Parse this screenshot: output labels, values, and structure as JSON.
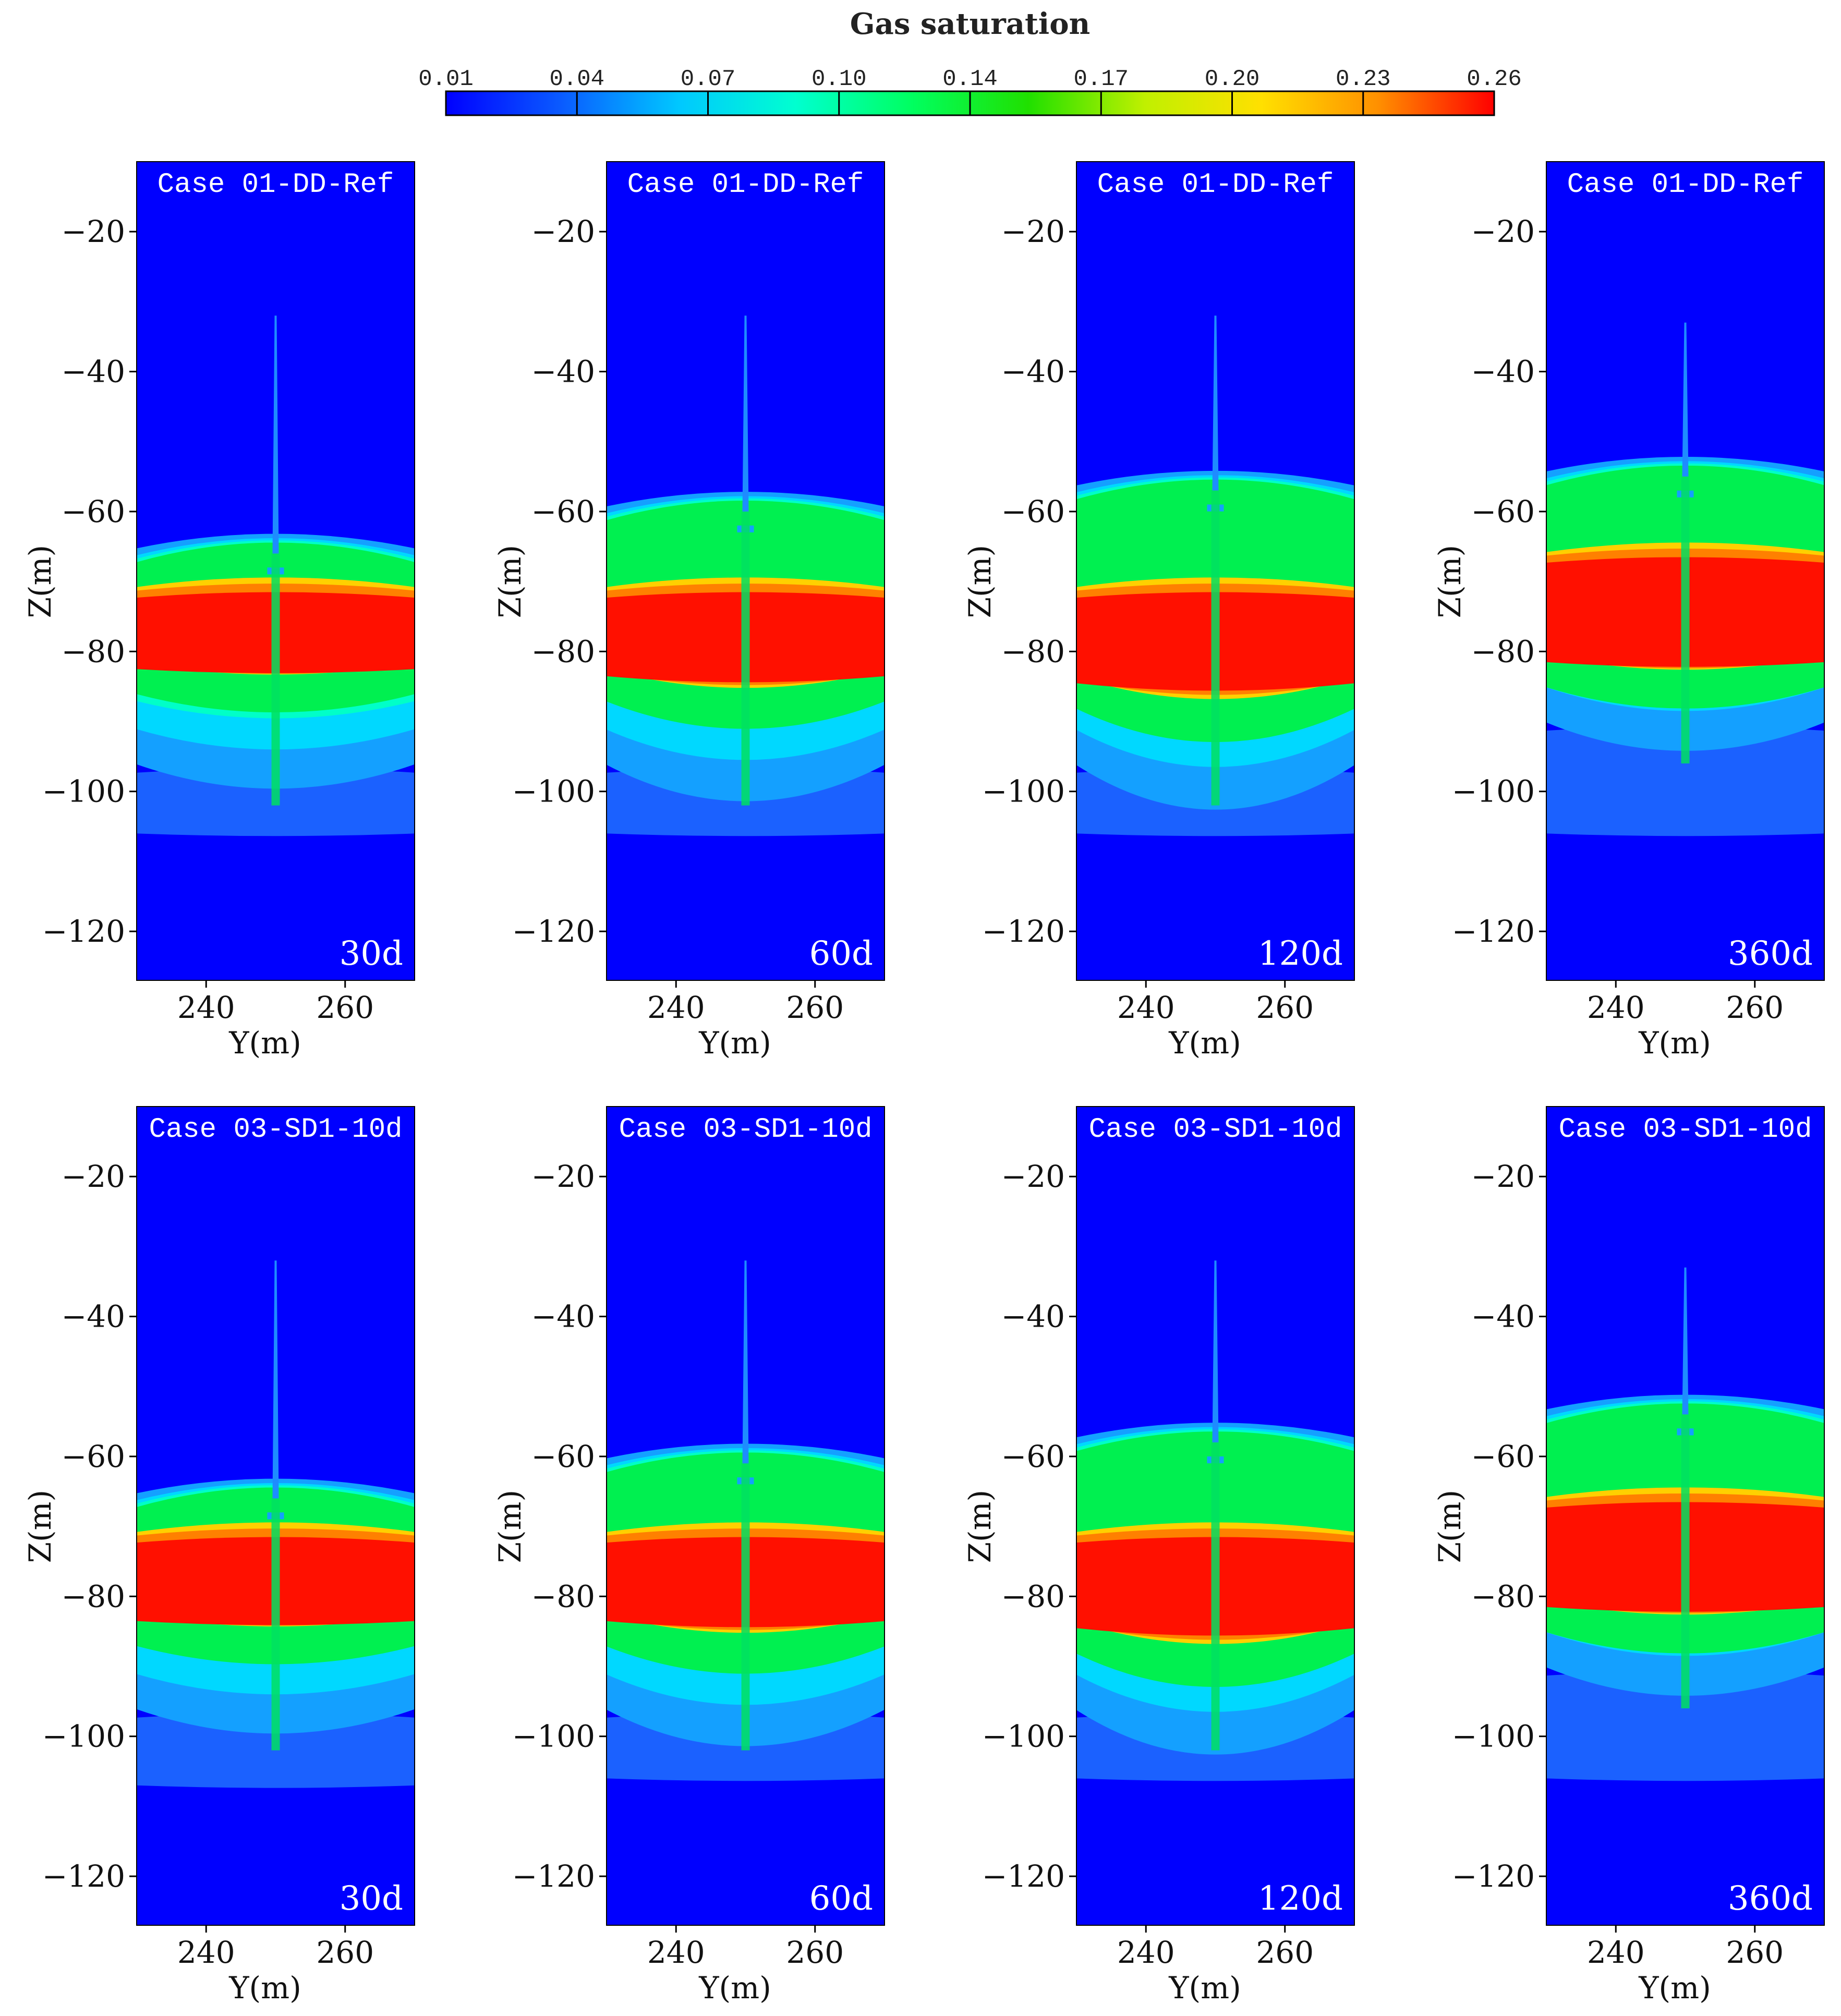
{
  "chart_data": {
    "type": "heatmap",
    "quantity": "Gas saturation",
    "colorbar": {
      "title": "Gas saturation",
      "ticks": [
        "0.01",
        "0.04",
        "0.07",
        "0.10",
        "0.14",
        "0.17",
        "0.20",
        "0.23",
        "0.26"
      ],
      "range": [
        0.01,
        0.26
      ],
      "colors": [
        "#0000ff",
        "#0a5cff",
        "#00c8ff",
        "#00ffd0",
        "#00ff60",
        "#20e000",
        "#c0f000",
        "#ffe000",
        "#ff9000",
        "#ff0000"
      ]
    },
    "xlabel": "Y(m)",
    "ylabel": "Z(m)",
    "xlim": [
      230,
      270
    ],
    "ylim": [
      -127,
      -10
    ],
    "xticks": [
      "240",
      "260"
    ],
    "yticks": [
      "−20",
      "−40",
      "−60",
      "−80",
      "−100",
      "−120"
    ],
    "rows": [
      {
        "case": "Case 01-DD-Ref",
        "panels": [
          {
            "time": "30d",
            "plume_top": -64,
            "core_top": -71,
            "core_bottom": -81,
            "plume_bottom": -96,
            "dip": 6,
            "faint_bottom": -106,
            "chimney_top": -32
          },
          {
            "time": "60d",
            "plume_top": -58,
            "core_top": -71,
            "core_bottom": -82,
            "plume_bottom": -96,
            "dip": 9,
            "faint_bottom": -106,
            "chimney_top": -32
          },
          {
            "time": "120d",
            "plume_top": -55,
            "core_top": -71,
            "core_bottom": -83,
            "plume_bottom": -96,
            "dip": 11,
            "faint_bottom": -106,
            "chimney_top": -32
          },
          {
            "time": "360d",
            "plume_top": -53,
            "core_top": -66,
            "core_bottom": -80,
            "plume_bottom": -90,
            "dip": 7,
            "faint_bottom": -106,
            "chimney_top": -33
          }
        ]
      },
      {
        "case": "Case 03-SD1-10d",
        "panels": [
          {
            "time": "30d",
            "plume_top": -64,
            "core_top": -71,
            "core_bottom": -82,
            "plume_bottom": -96,
            "dip": 6,
            "faint_bottom": -107,
            "chimney_top": -32
          },
          {
            "time": "60d",
            "plume_top": -59,
            "core_top": -71,
            "core_bottom": -82,
            "plume_bottom": -96,
            "dip": 9,
            "faint_bottom": -106,
            "chimney_top": -32
          },
          {
            "time": "120d",
            "plume_top": -56,
            "core_top": -71,
            "core_bottom": -83,
            "plume_bottom": -96,
            "dip": 11,
            "faint_bottom": -106,
            "chimney_top": -32
          },
          {
            "time": "360d",
            "plume_top": -52,
            "core_top": -66,
            "core_bottom": -80,
            "plume_bottom": -90,
            "dip": 7,
            "faint_bottom": -106,
            "chimney_top": -33
          }
        ]
      }
    ]
  }
}
